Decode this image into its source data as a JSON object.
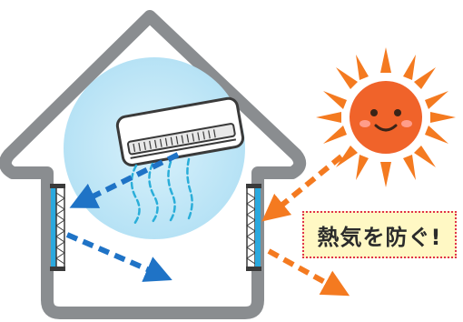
{
  "caption": {
    "text": "熱気を防ぐ!"
  },
  "colors": {
    "house_outline": "#8a8d90",
    "cool_air_glow": "#bfe6f7",
    "cool_air_arrow": "#1f73c6",
    "cool_air_stream": "#2aaed9",
    "window_glass": "#2aa9df",
    "sun_body": "#f0632a",
    "sun_rays": "#f47a20",
    "heat_arrow": "#f47a20",
    "caption_background": "#fff8c4",
    "caption_border": "#e0334a"
  },
  "icons": {
    "house": "house-icon",
    "air_conditioner": "air-conditioner-icon",
    "sun": "sun-icon",
    "window_left": "window-icon",
    "window_right": "window-icon"
  }
}
